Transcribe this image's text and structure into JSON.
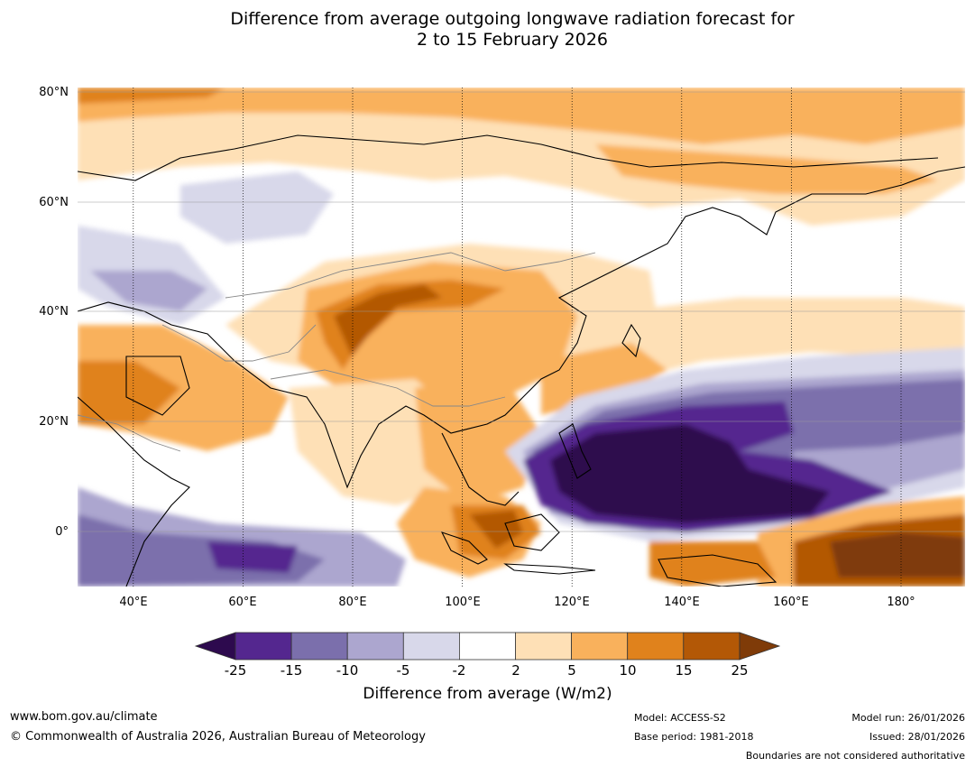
{
  "title": {
    "line1": "Difference from average outgoing longwave radiation forecast for",
    "line2": "2 to 15 February 2026"
  },
  "map": {
    "lat_labels": [
      "80°N",
      "60°N",
      "40°N",
      "20°N",
      "0°"
    ],
    "lon_labels": [
      "40°E",
      "60°E",
      "80°E",
      "100°E",
      "120°E",
      "140°E",
      "160°E",
      "180°"
    ]
  },
  "colorbar": {
    "ticks": [
      "-25",
      "-15",
      "-10",
      "-5",
      "-2",
      "2",
      "5",
      "10",
      "15",
      "25"
    ],
    "colors": [
      "#2d0a4e",
      "#54278f",
      "#7b6fac",
      "#aca6cf",
      "#d8d8ea",
      "#ffffff",
      "#fee0b6",
      "#f9b15c",
      "#e0821c",
      "#b35806",
      "#7f3b08"
    ],
    "label": "Difference from average (W/m2)"
  },
  "footer": {
    "website": "www.bom.gov.au/climate",
    "copyright": "© Commonwealth of Australia 2026, Australian Bureau of Meteorology",
    "model": "Model: ACCESS-S2",
    "base_period": "Base period: 1981-2018",
    "model_run": "Model run: 26/01/2026",
    "issued": "Issued: 28/01/2026",
    "boundaries": "Boundaries are not considered authoritative"
  }
}
